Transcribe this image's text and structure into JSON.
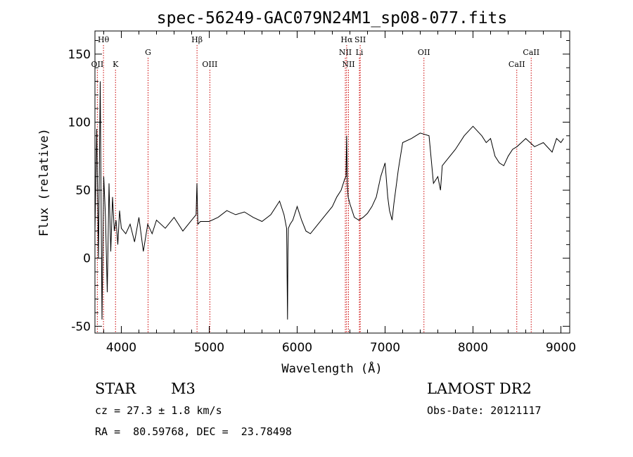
{
  "chart_data": {
    "type": "line",
    "title": "spec-56249-GAC079N24M1_sp08-077.fits",
    "xlabel": "Wavelength (Å)",
    "ylabel": "Flux (relative)",
    "xlim": [
      3700,
      9100
    ],
    "ylim": [
      -55,
      167
    ],
    "xticks": [
      4000,
      5000,
      6000,
      7000,
      8000,
      9000
    ],
    "yticks": [
      -50,
      0,
      50,
      100,
      150
    ],
    "grid": false,
    "line_color": "#000000",
    "marker_color": "#cc0000",
    "series": [
      {
        "x": [
          3700,
          3720,
          3740,
          3760,
          3780,
          3800,
          3820,
          3840,
          3860,
          3880,
          3900,
          3920,
          3940,
          3960,
          3980,
          4000,
          4050,
          4100,
          4150,
          4200,
          4250,
          4300,
          4350,
          4400,
          4500,
          4600,
          4700,
          4800,
          4850,
          4860,
          4870,
          4900,
          5000,
          5100,
          5200,
          5300,
          5400,
          5500,
          5600,
          5700,
          5800,
          5850,
          5880,
          5890,
          5895,
          5900,
          5920,
          5950,
          6000,
          6050,
          6100,
          6150,
          6200,
          6300,
          6400,
          6450,
          6500,
          6540,
          6555,
          6563,
          6570,
          6580,
          6600,
          6650,
          6700,
          6750,
          6800,
          6850,
          6900,
          6950,
          7000,
          7030,
          7050,
          7080,
          7100,
          7130,
          7150,
          7200,
          7300,
          7400,
          7500,
          7550,
          7600,
          7630,
          7650,
          7700,
          7800,
          7900,
          8000,
          8100,
          8150,
          8200,
          8250,
          8300,
          8350,
          8400,
          8450,
          8500,
          8550,
          8600,
          8700,
          8800,
          8900,
          8950,
          9000,
          9030
        ],
        "y": [
          20,
          95,
          0,
          130,
          -45,
          60,
          30,
          -25,
          55,
          5,
          45,
          20,
          28,
          10,
          35,
          22,
          18,
          25,
          12,
          30,
          5,
          25,
          18,
          28,
          22,
          30,
          20,
          28,
          32,
          55,
          25,
          27,
          27,
          30,
          35,
          32,
          34,
          30,
          27,
          32,
          42,
          32,
          22,
          -45,
          5,
          22,
          25,
          28,
          38,
          28,
          20,
          18,
          22,
          30,
          38,
          45,
          50,
          58,
          60,
          90,
          55,
          45,
          40,
          30,
          28,
          30,
          33,
          38,
          45,
          60,
          70,
          45,
          35,
          28,
          40,
          55,
          65,
          85,
          88,
          92,
          90,
          55,
          60,
          50,
          68,
          72,
          80,
          90,
          97,
          90,
          85,
          88,
          75,
          70,
          68,
          75,
          80,
          82,
          85,
          88,
          82,
          85,
          78,
          88,
          85,
          88
        ]
      }
    ],
    "lines": [
      {
        "label": "Hθ",
        "wl": 3797,
        "row": 0
      },
      {
        "label": "OII",
        "wl": 3727,
        "row": 2
      },
      {
        "label": "K",
        "wl": 3934,
        "row": 2
      },
      {
        "label": "G",
        "wl": 4304,
        "row": 1
      },
      {
        "label": "Hβ",
        "wl": 4861,
        "row": 0
      },
      {
        "label": "OIII",
        "wl": 5007,
        "row": 2
      },
      {
        "label": "Hα",
        "wl": 6563,
        "row": 0
      },
      {
        "label": "SII",
        "wl": 6717,
        "row": 0
      },
      {
        "label": "NII",
        "wl": 6548,
        "row": 1
      },
      {
        "label": "Li",
        "wl": 6708,
        "row": 1
      },
      {
        "label": "NII",
        "wl": 6584,
        "row": 2
      },
      {
        "label": "OII",
        "wl": 7442,
        "row": 1
      },
      {
        "label": "CaII",
        "wl": 8498,
        "row": 2
      },
      {
        "label": "CaII",
        "wl": 8662,
        "row": 1
      }
    ]
  },
  "info": {
    "object_class": "STAR",
    "subclass": "M3",
    "survey": "LAMOST DR2",
    "cz": "cz = 27.3 ± 1.8 km/s",
    "obs_date": "Obs-Date: 20121117",
    "coords": "RA =  80.59768, DEC =  23.78498"
  }
}
